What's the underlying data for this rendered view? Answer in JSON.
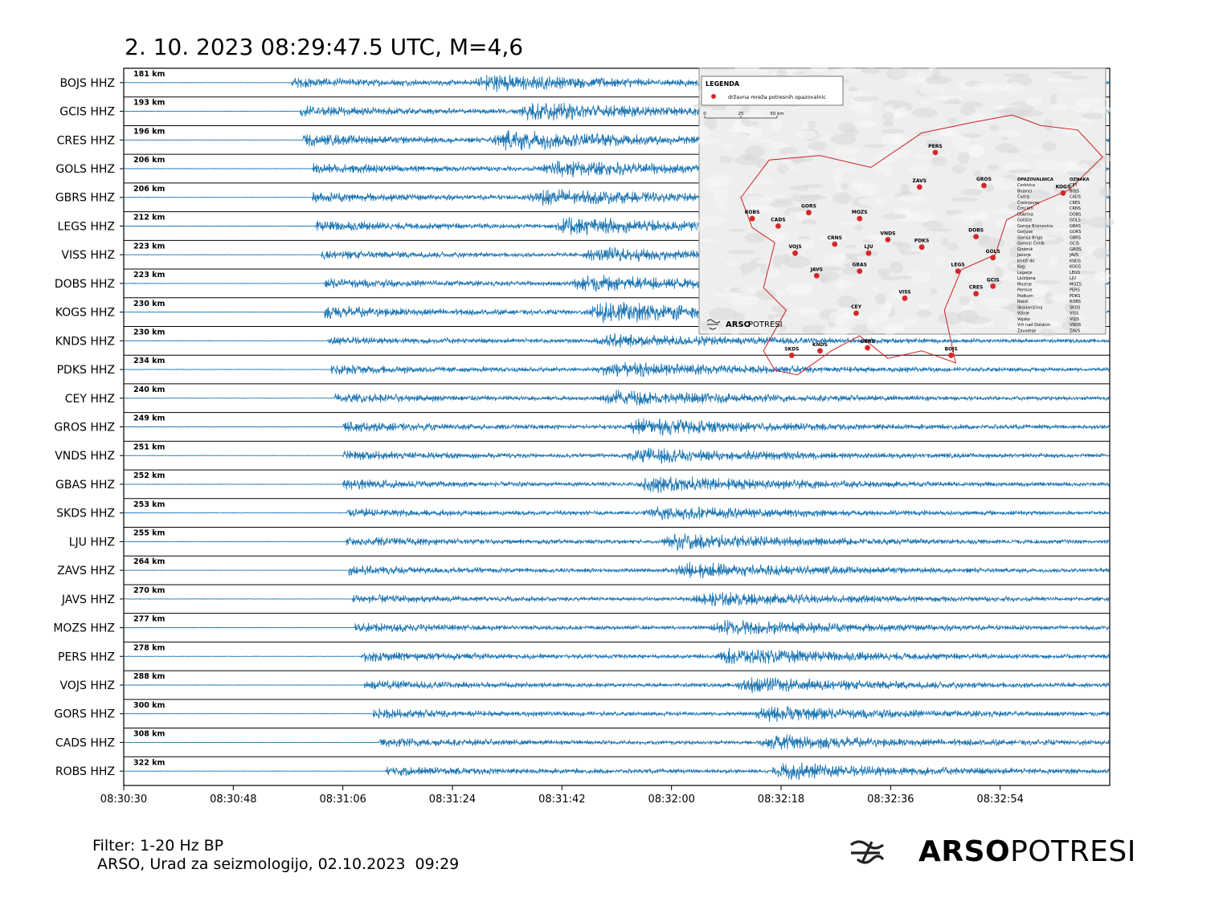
{
  "title": "2. 10. 2023 08:29:47.5 UTC, M=4,6",
  "footer": {
    "filter": "Filter: 1-20 Hz BP",
    "credit": " ARSO, Urad za seizmologijo, 02.10.2023  09:29"
  },
  "brand": {
    "bold": "ARSO",
    "light": "POTRESI",
    "icon": "arso-wave-logo-icon"
  },
  "colors": {
    "trace": "#1f77b4",
    "station": "#d62728",
    "border": "#cc2222"
  },
  "chart_data": {
    "type": "line",
    "title": "2. 10. 2023 08:29:47.5 UTC, M=4,6",
    "x_tick_labels": [
      "08:30:30",
      "08:30:48",
      "08:31:06",
      "08:31:24",
      "08:31:42",
      "08:32:00",
      "08:32:18",
      "08:32:36",
      "08:32:54"
    ],
    "x_tick_seconds": [
      0,
      18,
      36,
      54,
      72,
      90,
      108,
      126,
      144
    ],
    "xlim_seconds": [
      0,
      162
    ],
    "traces": [
      {
        "station": "BOJS HHZ",
        "distance": "181 km",
        "onset": 27.5,
        "s_arrival": 59,
        "amp": 0.55
      },
      {
        "station": "GCIS HHZ",
        "distance": "193 km",
        "onset": 29,
        "s_arrival": 66,
        "amp": 0.6
      },
      {
        "station": "CRES HHZ",
        "distance": "196 km",
        "onset": 29.5,
        "s_arrival": 62,
        "amp": 0.7
      },
      {
        "station": "GOLS HHZ",
        "distance": "206 km",
        "onset": 31,
        "s_arrival": 70,
        "amp": 0.55
      },
      {
        "station": "GBRS HHZ",
        "distance": "206 km",
        "onset": 31,
        "s_arrival": 68,
        "amp": 0.55
      },
      {
        "station": "LEGS HHZ",
        "distance": "212 km",
        "onset": 31.5,
        "s_arrival": 72,
        "amp": 0.6
      },
      {
        "station": "VISS HHZ",
        "distance": "223 km",
        "onset": 32.5,
        "s_arrival": 77,
        "amp": 0.45
      },
      {
        "station": "DOBS HHZ",
        "distance": "223 km",
        "onset": 33,
        "s_arrival": 75,
        "amp": 0.55
      },
      {
        "station": "KOGS HHZ",
        "distance": "230 km",
        "onset": 33,
        "s_arrival": 78,
        "amp": 0.75
      },
      {
        "station": "KNDS HHZ",
        "distance": "230 km",
        "onset": 33.5,
        "s_arrival": 79,
        "amp": 0.45
      },
      {
        "station": "PDKS HHZ",
        "distance": "234 km",
        "onset": 34,
        "s_arrival": 79,
        "amp": 0.5
      },
      {
        "station": "CEY HHZ",
        "distance": "240 km",
        "onset": 34.5,
        "s_arrival": 80,
        "amp": 0.5
      },
      {
        "station": "GROS HHZ",
        "distance": "249 km",
        "onset": 36,
        "s_arrival": 84,
        "amp": 0.55
      },
      {
        "station": "VNDS HHZ",
        "distance": "251 km",
        "onset": 36,
        "s_arrival": 84,
        "amp": 0.5
      },
      {
        "station": "GBAS HHZ",
        "distance": "252 km",
        "onset": 36,
        "s_arrival": 86,
        "amp": 0.55
      },
      {
        "station": "SKDS HHZ",
        "distance": "253 km",
        "onset": 36.5,
        "s_arrival": 87,
        "amp": 0.45
      },
      {
        "station": "LJU HHZ",
        "distance": "255 km",
        "onset": 36.5,
        "s_arrival": 90,
        "amp": 0.5
      },
      {
        "station": "ZAVS HHZ",
        "distance": "264 km",
        "onset": 37,
        "s_arrival": 92,
        "amp": 0.5
      },
      {
        "station": "JAVS HHZ",
        "distance": "270 km",
        "onset": 37.5,
        "s_arrival": 95,
        "amp": 0.45
      },
      {
        "station": "MOZS HHZ",
        "distance": "277 km",
        "onset": 38,
        "s_arrival": 98,
        "amp": 0.5
      },
      {
        "station": "PERS HHZ",
        "distance": "278 km",
        "onset": 39,
        "s_arrival": 99,
        "amp": 0.55
      },
      {
        "station": "VOJS HHZ",
        "distance": "288 km",
        "onset": 39.5,
        "s_arrival": 102,
        "amp": 0.5
      },
      {
        "station": "GORS HHZ",
        "distance": "300 km",
        "onset": 41,
        "s_arrival": 105,
        "amp": 0.5
      },
      {
        "station": "CADS HHZ",
        "distance": "308 km",
        "onset": 42,
        "s_arrival": 106,
        "amp": 0.5
      },
      {
        "station": "ROBS HHZ",
        "distance": "322 km",
        "onset": 43,
        "s_arrival": 108,
        "amp": 0.55
      }
    ]
  },
  "map": {
    "legend_title": "LEGENDA",
    "legend_item": "državna mreža potresnih opazovalnic",
    "scale_labels": [
      "0",
      "25",
      "50 km"
    ],
    "logo_bold": "ARSO",
    "logo_light": "POTRESI",
    "stations": [
      {
        "code": "PERS",
        "lon": 15.12,
        "lat": 46.5
      },
      {
        "code": "ZAVS",
        "lon": 14.98,
        "lat": 46.27
      },
      {
        "code": "GROS",
        "lon": 15.55,
        "lat": 46.28
      },
      {
        "code": "KOGS",
        "lon": 16.25,
        "lat": 46.23
      },
      {
        "code": "ROBS",
        "lon": 13.5,
        "lat": 46.06
      },
      {
        "code": "CADS",
        "lon": 13.73,
        "lat": 46.01
      },
      {
        "code": "GORS",
        "lon": 14.0,
        "lat": 46.1
      },
      {
        "code": "MOZS",
        "lon": 14.45,
        "lat": 46.06
      },
      {
        "code": "CRNS",
        "lon": 14.23,
        "lat": 45.89
      },
      {
        "code": "LJU",
        "lon": 14.53,
        "lat": 45.83
      },
      {
        "code": "VNDS",
        "lon": 14.7,
        "lat": 45.92
      },
      {
        "code": "PDKS",
        "lon": 15.0,
        "lat": 45.87
      },
      {
        "code": "DOBS",
        "lon": 15.48,
        "lat": 45.94
      },
      {
        "code": "VOJS",
        "lon": 13.88,
        "lat": 45.83
      },
      {
        "code": "GOLS",
        "lon": 15.63,
        "lat": 45.8
      },
      {
        "code": "JAVS",
        "lon": 14.07,
        "lat": 45.68
      },
      {
        "code": "GBAS",
        "lon": 14.45,
        "lat": 45.71
      },
      {
        "code": "LEGS",
        "lon": 15.32,
        "lat": 45.71
      },
      {
        "code": "GCIS",
        "lon": 15.63,
        "lat": 45.61
      },
      {
        "code": "CRES",
        "lon": 15.48,
        "lat": 45.56
      },
      {
        "code": "VISS",
        "lon": 14.85,
        "lat": 45.53
      },
      {
        "code": "CEY",
        "lon": 14.42,
        "lat": 45.43
      },
      {
        "code": "SKDS",
        "lon": 13.85,
        "lat": 45.15
      },
      {
        "code": "KNDS",
        "lon": 14.1,
        "lat": 45.18
      },
      {
        "code": "GBRS",
        "lon": 14.52,
        "lat": 45.2
      },
      {
        "code": "BOJS",
        "lon": 15.26,
        "lat": 45.15
      }
    ],
    "table_headers": [
      "OPAZOVALNICA",
      "OZNAKA"
    ],
    "table_rows": [
      [
        "Cerknica",
        "CEY"
      ],
      [
        "Bojanci",
        "BOJS"
      ],
      [
        "Čadrg",
        "CADS"
      ],
      [
        "Črešnjevec",
        "CRES"
      ],
      [
        "Črni Vrh",
        "CRNS"
      ],
      [
        "Dobrina",
        "DOBS"
      ],
      [
        "Golišče",
        "GOLS"
      ],
      [
        "Gornja Briznovica",
        "GBAS"
      ],
      [
        "Gorjuse",
        "GORS"
      ],
      [
        "Gornja Briga",
        "GBRS"
      ],
      [
        "Gorenji Čirnik",
        "GCIS"
      ],
      [
        "Grobnik",
        "GROS"
      ],
      [
        "Javorje",
        "JAVS"
      ],
      [
        "Kneži do",
        "KNDS"
      ],
      [
        "Kog",
        "KOGS"
      ],
      [
        "Legarje",
        "LEGS"
      ],
      [
        "Ljubljana",
        "LJU"
      ],
      [
        "Mozirje",
        "MOZS"
      ],
      [
        "Pernice",
        "PERS"
      ],
      [
        "Podkum",
        "PDKS"
      ],
      [
        "Robič",
        "ROBS"
      ],
      [
        "Skadanščina",
        "SKDS"
      ],
      [
        "Višnje",
        "VISS"
      ],
      [
        "Vojsko",
        "VOJS"
      ],
      [
        "Vrh nad Dolskim",
        "VNDS"
      ],
      [
        "Zavodnje",
        "ZAVS"
      ]
    ]
  }
}
